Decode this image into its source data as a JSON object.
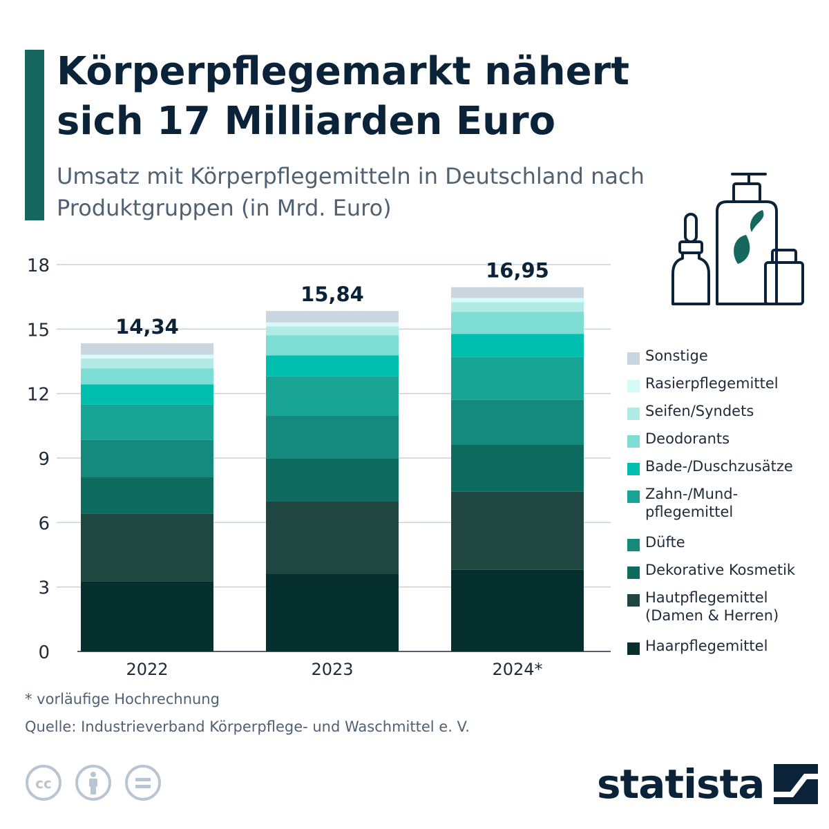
{
  "header": {
    "title": "Körperpflegemarkt nähert sich 17 Milliarden Euro",
    "subtitle": "Umsatz mit Körperpflegemitteln in Deutschland nach Produktgruppen (in Mrd. Euro)"
  },
  "chart_data": {
    "type": "bar",
    "stacked": true,
    "categories": [
      "2022",
      "2023",
      "2024*"
    ],
    "ylim": [
      0,
      18
    ],
    "yticks": [
      0,
      3,
      6,
      9,
      12,
      15,
      18
    ],
    "grid": true,
    "legend_position": "right",
    "totals": [
      "14,34",
      "15,84",
      "16,95"
    ],
    "series": [
      {
        "name": "Haarpflegemittel",
        "color": "#06302e",
        "values": [
          3.27,
          3.6,
          3.8
        ]
      },
      {
        "name": "Hautpflegemittel (Damen & Herren)",
        "color": "#1f4641",
        "values": [
          3.15,
          3.4,
          3.63
        ]
      },
      {
        "name": "Dekorative Kosmetik",
        "color": "#0e6b60",
        "values": [
          1.7,
          1.98,
          2.2
        ]
      },
      {
        "name": "Düfte",
        "color": "#138a7c",
        "values": [
          1.72,
          1.98,
          2.08
        ]
      },
      {
        "name": "Zahn-/Mund-pflegemittel",
        "color": "#18a595",
        "values": [
          1.66,
          1.84,
          1.99
        ]
      },
      {
        "name": "Bade-/Duschzusätze",
        "color": "#00bfae",
        "values": [
          0.93,
          0.98,
          1.07
        ]
      },
      {
        "name": "Deodorants",
        "color": "#7ddcd4",
        "values": [
          0.74,
          0.93,
          1.03
        ]
      },
      {
        "name": "Seifen/Syndets",
        "color": "#b2ebe6",
        "values": [
          0.46,
          0.41,
          0.45
        ]
      },
      {
        "name": "Rasierpflegemittel",
        "color": "#d5fbf8",
        "values": [
          0.18,
          0.19,
          0.2
        ]
      },
      {
        "name": "Sonstige",
        "color": "#c9d6de",
        "values": [
          0.53,
          0.53,
          0.5
        ]
      }
    ]
  },
  "legend": {
    "items": [
      {
        "label": "Sonstige",
        "color": "#c9d6de"
      },
      {
        "label": "Rasierpflegemittel",
        "color": "#d5fbf8"
      },
      {
        "label": "Seifen/Syndets",
        "color": "#b2ebe6"
      },
      {
        "label": "Deodorants",
        "color": "#7ddcd4"
      },
      {
        "label": "Bade-/Duschzusätze",
        "color": "#00bfae"
      },
      {
        "label": "Zahn-/Mund-pflegemittel",
        "color": "#18a595"
      },
      {
        "label": "Düfte",
        "color": "#138a7c"
      },
      {
        "label": "Dekorative Kosmetik",
        "color": "#0e6b60"
      },
      {
        "label": "Hautpflegemittel (Damen & Herren)",
        "color": "#1f4641"
      },
      {
        "label": "Haarpflegemittel",
        "color": "#06302e"
      }
    ]
  },
  "footer": {
    "footnote": "* vorläufige Hochrechnung",
    "source": "Quelle: Industrieverband Körperpflege- und Waschmittel e. V.",
    "brand": "statista",
    "license_icons": [
      "cc-icon",
      "attribution-icon",
      "no-derivatives-icon"
    ]
  },
  "illustration": {
    "icon": "cosmetic-bottles-icon",
    "accent_color": "#16675d"
  }
}
